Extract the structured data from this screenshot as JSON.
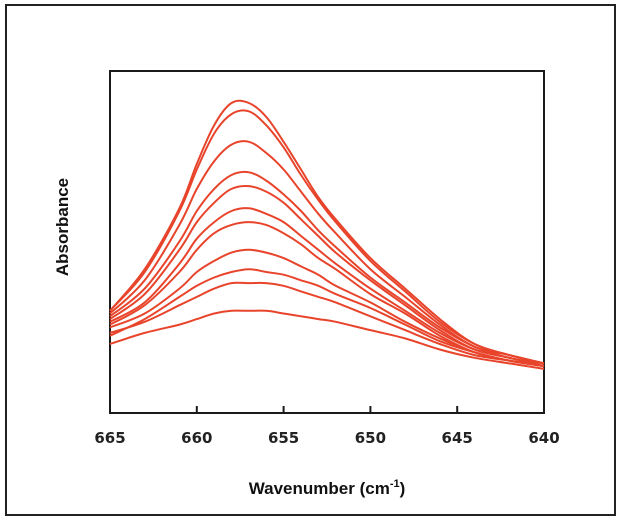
{
  "chart_data": {
    "type": "line",
    "xlabel": "Wavenumber (cm",
    "xlabel_sup": "-1",
    "xlabel_tail": ")",
    "ylabel": "Absorbance",
    "xlim": [
      665,
      640
    ],
    "xticks": [
      "665",
      "660",
      "655",
      "650",
      "645",
      "640"
    ],
    "ylim": [
      0,
      1
    ],
    "grid": false,
    "legend": "none",
    "line_color": "#e8442b",
    "x": [
      665,
      663,
      661,
      660,
      659,
      658,
      657,
      656,
      655,
      654,
      653,
      652,
      650,
      648,
      646,
      644,
      642,
      640
    ],
    "series": [
      {
        "values": [
          0.25,
          0.4,
          0.62,
          0.78,
          0.92,
          1.0,
          1.0,
          0.95,
          0.86,
          0.76,
          0.66,
          0.58,
          0.44,
          0.33,
          0.22,
          0.13,
          0.09,
          0.06
        ]
      },
      {
        "values": [
          0.25,
          0.39,
          0.61,
          0.76,
          0.89,
          0.96,
          0.97,
          0.92,
          0.84,
          0.74,
          0.65,
          0.57,
          0.43,
          0.32,
          0.21,
          0.13,
          0.09,
          0.06
        ]
      },
      {
        "values": [
          0.24,
          0.36,
          0.56,
          0.69,
          0.79,
          0.85,
          0.86,
          0.82,
          0.76,
          0.68,
          0.6,
          0.53,
          0.4,
          0.3,
          0.2,
          0.12,
          0.09,
          0.06
        ]
      },
      {
        "values": [
          0.23,
          0.33,
          0.5,
          0.61,
          0.69,
          0.74,
          0.75,
          0.72,
          0.67,
          0.61,
          0.54,
          0.48,
          0.37,
          0.28,
          0.19,
          0.12,
          0.08,
          0.06
        ]
      },
      {
        "values": [
          0.22,
          0.31,
          0.47,
          0.57,
          0.64,
          0.69,
          0.7,
          0.68,
          0.64,
          0.58,
          0.52,
          0.46,
          0.36,
          0.27,
          0.18,
          0.11,
          0.08,
          0.05
        ]
      },
      {
        "values": [
          0.21,
          0.28,
          0.42,
          0.51,
          0.57,
          0.61,
          0.62,
          0.6,
          0.57,
          0.52,
          0.47,
          0.42,
          0.33,
          0.25,
          0.17,
          0.11,
          0.08,
          0.05
        ]
      },
      {
        "values": [
          0.2,
          0.27,
          0.39,
          0.47,
          0.53,
          0.56,
          0.57,
          0.56,
          0.53,
          0.49,
          0.44,
          0.4,
          0.31,
          0.24,
          0.16,
          0.1,
          0.07,
          0.05
        ]
      },
      {
        "values": [
          0.19,
          0.24,
          0.33,
          0.39,
          0.43,
          0.46,
          0.47,
          0.46,
          0.44,
          0.41,
          0.38,
          0.34,
          0.28,
          0.21,
          0.15,
          0.1,
          0.07,
          0.05
        ]
      },
      {
        "values": [
          0.17,
          0.21,
          0.27,
          0.3,
          0.33,
          0.35,
          0.35,
          0.35,
          0.34,
          0.32,
          0.3,
          0.28,
          0.23,
          0.18,
          0.13,
          0.09,
          0.07,
          0.05
        ]
      },
      {
        "values": [
          0.13,
          0.17,
          0.2,
          0.22,
          0.24,
          0.25,
          0.25,
          0.25,
          0.24,
          0.23,
          0.22,
          0.21,
          0.18,
          0.15,
          0.11,
          0.08,
          0.06,
          0.04
        ]
      },
      {
        "values": [
          0.16,
          0.22,
          0.3,
          0.34,
          0.37,
          0.39,
          0.4,
          0.39,
          0.38,
          0.36,
          0.34,
          0.31,
          0.26,
          0.2,
          0.14,
          0.1,
          0.07,
          0.05
        ]
      }
    ]
  }
}
